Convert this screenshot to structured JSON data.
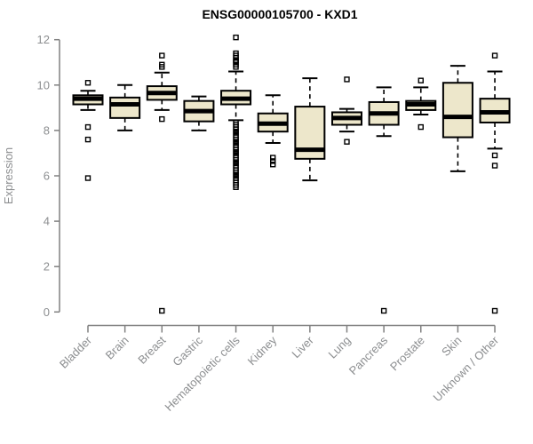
{
  "title": "ENSG00000105700 - KXD1",
  "chart_data": {
    "type": "boxplot",
    "title": "ENSG00000105700 - KXD1",
    "xlabel": "",
    "ylabel": "Expression",
    "ylim": [
      0,
      12
    ],
    "yticks": [
      0,
      2,
      4,
      6,
      8,
      10,
      12
    ],
    "grid": false,
    "legend": "none",
    "colors": {
      "box_fill": "#EDE7CB",
      "box_stroke": "#000000",
      "median": "#000000",
      "axis": "#808080",
      "tick_text": "#8C8E90",
      "background": "#FFFFFF"
    },
    "categories": [
      "Bladder",
      "Brain",
      "Breast",
      "Gastric",
      "Hematopoietic cells",
      "Kidney",
      "Liver",
      "Lung",
      "Pancreas",
      "Prostate",
      "Skin",
      "Unknown / Other"
    ],
    "series": [
      {
        "label": "Bladder",
        "whisker_low": 8.9,
        "q1": 9.15,
        "median": 9.4,
        "q3": 9.55,
        "whisker_high": 9.75,
        "outliers": [
          10.1,
          8.15,
          7.6,
          5.9
        ]
      },
      {
        "label": "Brain",
        "whisker_low": 8.0,
        "q1": 8.55,
        "median": 9.15,
        "q3": 9.45,
        "whisker_high": 10.0,
        "outliers": []
      },
      {
        "label": "Breast",
        "whisker_low": 8.9,
        "q1": 9.35,
        "median": 9.65,
        "q3": 9.95,
        "whisker_high": 10.55,
        "outliers": [
          11.3,
          10.9,
          10.8,
          8.5,
          0.05
        ]
      },
      {
        "label": "Gastric",
        "whisker_low": 8.0,
        "q1": 8.4,
        "median": 8.85,
        "q3": 9.3,
        "whisker_high": 9.5,
        "outliers": []
      },
      {
        "label": "Hematopoietic cells",
        "whisker_low": 8.45,
        "q1": 9.15,
        "median": 9.4,
        "q3": 9.75,
        "whisker_high": 10.6,
        "outliers": [
          12.1,
          11.4,
          11.3,
          11.2,
          11.1,
          11.05,
          11.0,
          10.9,
          10.8,
          8.35,
          8.25,
          8.15,
          8.05,
          7.95,
          7.9,
          7.8,
          7.7,
          7.6,
          7.5,
          7.45,
          7.35,
          7.25,
          7.15,
          7.05,
          7.0,
          6.9,
          6.8,
          6.7,
          6.6,
          6.55,
          6.45,
          6.35,
          6.25,
          6.15,
          6.05,
          6.0,
          5.9,
          5.8,
          5.7,
          5.6,
          5.5
        ]
      },
      {
        "label": "Kidney",
        "whisker_low": 7.45,
        "q1": 7.95,
        "median": 8.3,
        "q3": 8.75,
        "whisker_high": 9.55,
        "outliers": [
          6.8,
          6.65,
          6.5
        ]
      },
      {
        "label": "Liver",
        "whisker_low": 5.8,
        "q1": 6.75,
        "median": 7.15,
        "q3": 9.05,
        "whisker_high": 10.3,
        "outliers": []
      },
      {
        "label": "Lung",
        "whisker_low": 7.95,
        "q1": 8.25,
        "median": 8.55,
        "q3": 8.8,
        "whisker_high": 8.95,
        "outliers": [
          10.25,
          7.5
        ]
      },
      {
        "label": "Pancreas",
        "whisker_low": 7.75,
        "q1": 8.25,
        "median": 8.75,
        "q3": 9.25,
        "whisker_high": 9.9,
        "outliers": [
          0.05
        ]
      },
      {
        "label": "Prostate",
        "whisker_low": 8.7,
        "q1": 8.9,
        "median": 9.15,
        "q3": 9.3,
        "whisker_high": 9.9,
        "outliers": [
          10.2,
          8.15
        ]
      },
      {
        "label": "Skin",
        "whisker_low": 6.2,
        "q1": 7.7,
        "median": 8.6,
        "q3": 10.1,
        "whisker_high": 10.85,
        "outliers": []
      },
      {
        "label": "Unknown / Other",
        "whisker_low": 7.2,
        "q1": 8.35,
        "median": 8.8,
        "q3": 9.4,
        "whisker_high": 10.6,
        "outliers": [
          11.3,
          6.9,
          6.45,
          0.05
        ]
      }
    ]
  }
}
